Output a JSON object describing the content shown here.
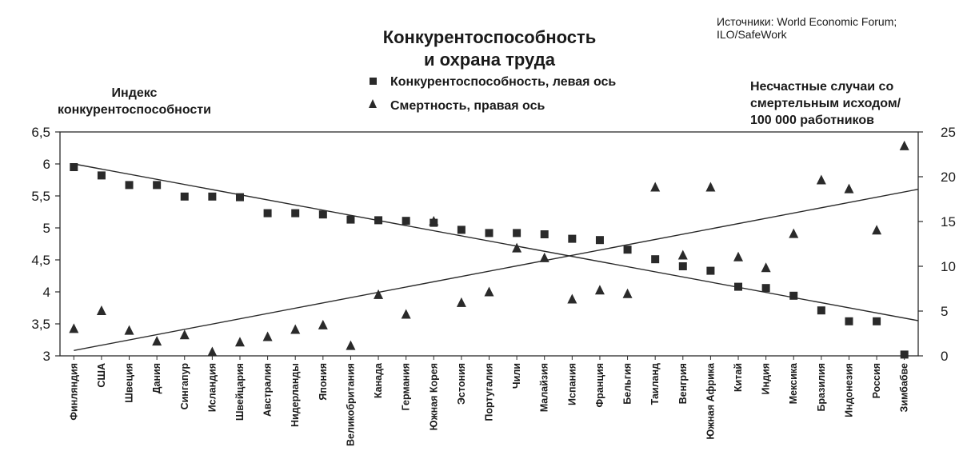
{
  "chart_data": {
    "type": "scatter",
    "title_lines": [
      "Конкурентоспособность",
      "и охрана труда"
    ],
    "source_lines": [
      "Источники: World Economic Forum;",
      "ILO/SafeWork"
    ],
    "left_axis_title_lines": [
      "Индекс",
      "конкурентоспособности"
    ],
    "right_axis_title_lines": [
      "Несчастные случаи со",
      "смертельным исходом/",
      "100 000 работников"
    ],
    "left_axis": {
      "min": 3,
      "max": 6.5,
      "ticks": [
        "3",
        "3,5",
        "4",
        "4,5",
        "5",
        "5,5",
        "6",
        "6,5"
      ]
    },
    "right_axis": {
      "min": 0,
      "max": 25,
      "ticks": [
        "0",
        "5",
        "10",
        "15",
        "20",
        "25"
      ]
    },
    "legend_position": "top-center",
    "categories": [
      "Финляндия",
      "США",
      "Швеция",
      "Дания",
      "Сингапур",
      "Исландия",
      "Швейцария",
      "Австралия",
      "Нидерланды",
      "Япония",
      "Великобритания",
      "Канада",
      "Германия",
      "Южная Корея",
      "Эстония",
      "Португалия",
      "Чили",
      "Малайзия",
      "Испания",
      "Франция",
      "Бельгия",
      "Таиланд",
      "Венгрия",
      "Южная Африка",
      "Китай",
      "Индия",
      "Мексика",
      "Бразилия",
      "Индонезия",
      "Россия",
      "Зимбабве"
    ],
    "series": [
      {
        "name": "Конкурентоспособность, левая ось",
        "marker": "square",
        "axis": "left",
        "values": [
          5.95,
          5.82,
          5.67,
          5.67,
          5.49,
          5.49,
          5.48,
          5.23,
          5.23,
          5.21,
          5.13,
          5.12,
          5.11,
          5.08,
          4.97,
          4.92,
          4.92,
          4.9,
          4.83,
          4.81,
          4.66,
          4.51,
          4.4,
          4.33,
          4.08,
          4.06,
          3.94,
          3.71,
          3.54,
          3.54,
          3.02
        ],
        "trend": {
          "start": 6.0,
          "end": 3.55
        }
      },
      {
        "name": "Смертность, правая ось",
        "marker": "triangle",
        "axis": "right",
        "values": [
          3.0,
          5.0,
          2.8,
          1.6,
          2.3,
          0.4,
          1.5,
          2.1,
          2.9,
          3.4,
          1.1,
          6.8,
          4.6,
          15.0,
          5.9,
          7.1,
          12.0,
          10.9,
          6.3,
          7.3,
          6.9,
          18.8,
          11.2,
          18.8,
          11.0,
          9.8,
          13.6,
          19.6,
          18.6,
          14.0,
          23.4
        ],
        "trend": {
          "start": 0.6,
          "end": 18.6
        }
      }
    ]
  }
}
